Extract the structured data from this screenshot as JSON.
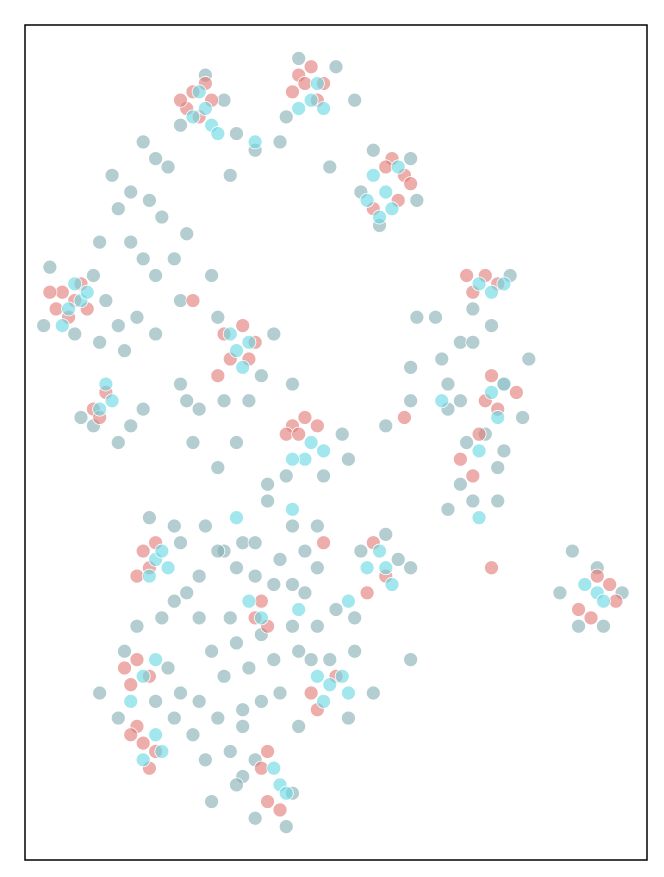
{
  "chart_data": {
    "type": "scatter",
    "xlim": [
      0,
      100
    ],
    "ylim": [
      0,
      100
    ],
    "frame": true,
    "series": [
      {
        "color": "#86aeb3",
        "x": [
          29,
          32,
          25,
          34,
          44,
          50,
          42,
          53,
          56,
          62,
          54,
          57,
          63,
          49,
          41,
          37,
          33,
          23,
          21,
          19,
          14,
          17,
          20,
          15,
          22,
          26,
          12,
          17,
          19,
          24,
          21,
          25,
          30,
          4,
          11,
          13,
          15,
          18,
          21,
          12,
          8,
          3,
          16,
          25,
          31,
          38,
          40,
          43,
          32,
          36,
          26,
          11,
          17,
          19,
          15,
          9,
          28,
          27,
          34,
          31,
          39,
          42,
          48,
          52,
          51,
          58,
          62,
          70,
          68,
          68,
          66,
          70,
          67,
          72,
          75,
          72,
          78,
          63,
          62,
          81,
          80,
          74,
          71,
          70,
          76,
          77,
          72,
          68,
          76,
          39,
          43,
          47,
          32,
          29,
          31,
          24,
          25,
          20,
          35,
          37,
          41,
          45,
          47,
          43,
          37,
          34,
          28,
          26,
          24,
          28,
          18,
          22,
          33,
          40,
          45,
          47,
          50,
          43,
          53,
          54,
          60,
          62,
          58,
          88,
          86,
          92,
          96,
          93,
          89,
          38,
          34,
          30,
          36,
          32,
          40,
          44,
          41,
          38,
          35,
          31,
          27,
          24,
          12,
          16,
          21,
          23,
          15,
          25,
          29,
          33,
          35,
          37,
          34,
          37,
          43,
          42,
          30,
          53,
          49,
          46,
          52,
          62,
          35,
          28,
          56,
          44
        ],
        "values": [
          94,
          91,
          88,
          87,
          96,
          95,
          89,
          91,
          85,
          84,
          80,
          76,
          79,
          83,
          86,
          85,
          82,
          83,
          84,
          86,
          82,
          80,
          79,
          78,
          77,
          75,
          74,
          74,
          72,
          72,
          70,
          67,
          70,
          71,
          70,
          67,
          64,
          65,
          63,
          62,
          63,
          64,
          61,
          57,
          65,
          58,
          63,
          57,
          55,
          55,
          55,
          52,
          52,
          54,
          50,
          53,
          54,
          50,
          50,
          47,
          45,
          46,
          46,
          48,
          51,
          52,
          55,
          55,
          57,
          54,
          65,
          62,
          60,
          62,
          64,
          66,
          70,
          65,
          59,
          60,
          53,
          51,
          50,
          45,
          47,
          49,
          43,
          42,
          43,
          43,
          40,
          40,
          37,
          40,
          37,
          40,
          38,
          41,
          38,
          38,
          36,
          37,
          35,
          33,
          34,
          35,
          34,
          32,
          31,
          29,
          28,
          29,
          29,
          33,
          32,
          28,
          30,
          28,
          29,
          37,
          36,
          35,
          39,
          37,
          32,
          35,
          32,
          28,
          28,
          27,
          26,
          25,
          23,
          22,
          24,
          25,
          20,
          19,
          18,
          17,
          15,
          17,
          20,
          25,
          19,
          23,
          17,
          20,
          12,
          13,
          10,
          12,
          9,
          5,
          8,
          4,
          7,
          25,
          24,
          24,
          17,
          24,
          16,
          19,
          20,
          16
        ]
      },
      {
        "color": "#e07a78",
        "x": [
          27,
          29,
          26,
          30,
          28,
          25,
          44,
          46,
          48,
          43,
          47,
          45,
          59,
          61,
          60,
          56,
          62,
          58,
          6,
          8,
          5,
          9,
          7,
          4,
          10,
          32,
          35,
          33,
          37,
          31,
          36,
          11,
          13,
          12,
          71,
          74,
          76,
          72,
          75,
          77,
          79,
          74,
          76,
          73,
          72,
          70,
          43,
          45,
          47,
          42,
          44,
          19,
          20,
          18,
          21,
          56,
          58,
          55,
          92,
          94,
          89,
          95,
          91,
          37,
          39,
          38,
          16,
          18,
          17,
          20,
          18,
          19,
          21,
          20,
          17,
          46,
          47,
          50,
          38,
          39,
          41,
          39,
          27,
          48,
          75,
          61
        ],
        "values": [
          92,
          93,
          90,
          91,
          89,
          91,
          94,
          95,
          93,
          92,
          91,
          93,
          84,
          82,
          79,
          78,
          81,
          83,
          68,
          67,
          66,
          69,
          65,
          68,
          66,
          63,
          64,
          60,
          62,
          58,
          60,
          54,
          56,
          53,
          70,
          70,
          69,
          68,
          58,
          57,
          56,
          55,
          54,
          51,
          46,
          48,
          52,
          53,
          52,
          51,
          51,
          37,
          35,
          34,
          38,
          38,
          34,
          32,
          34,
          33,
          30,
          31,
          29,
          29,
          28,
          31,
          23,
          24,
          21,
          22,
          16,
          14,
          13,
          11,
          15,
          20,
          18,
          22,
          11,
          7,
          6,
          13,
          67,
          38,
          35,
          53
        ]
      },
      {
        "color": "#6ad9e3",
        "x": [
          29,
          30,
          27,
          31,
          28,
          46,
          48,
          44,
          47,
          58,
          60,
          57,
          55,
          59,
          7,
          9,
          6,
          10,
          8,
          34,
          36,
          33,
          35,
          13,
          12,
          14,
          73,
          75,
          77,
          77,
          75,
          76,
          73,
          45,
          46,
          48,
          43,
          21,
          22,
          20,
          23,
          57,
          58,
          55,
          59,
          92,
          90,
          93,
          38,
          36,
          19,
          21,
          17,
          21,
          22,
          19,
          49,
          51,
          48,
          47,
          52,
          41,
          40,
          42,
          37,
          56,
          67,
          73,
          34,
          43,
          52,
          44
        ],
        "values": [
          90,
          88,
          89,
          87,
          92,
          91,
          90,
          90,
          93,
          80,
          83,
          77,
          79,
          78,
          66,
          67,
          64,
          68,
          69,
          61,
          62,
          63,
          59,
          57,
          54,
          55,
          69,
          68,
          69,
          57,
          56,
          53,
          49,
          48,
          50,
          49,
          48,
          36,
          37,
          34,
          35,
          37,
          35,
          35,
          33,
          32,
          33,
          31,
          29,
          31,
          22,
          24,
          19,
          15,
          13,
          12,
          21,
          22,
          19,
          22,
          20,
          9,
          11,
          8,
          86,
          82,
          55,
          41,
          41,
          42,
          31,
          30
        ]
      }
    ]
  }
}
